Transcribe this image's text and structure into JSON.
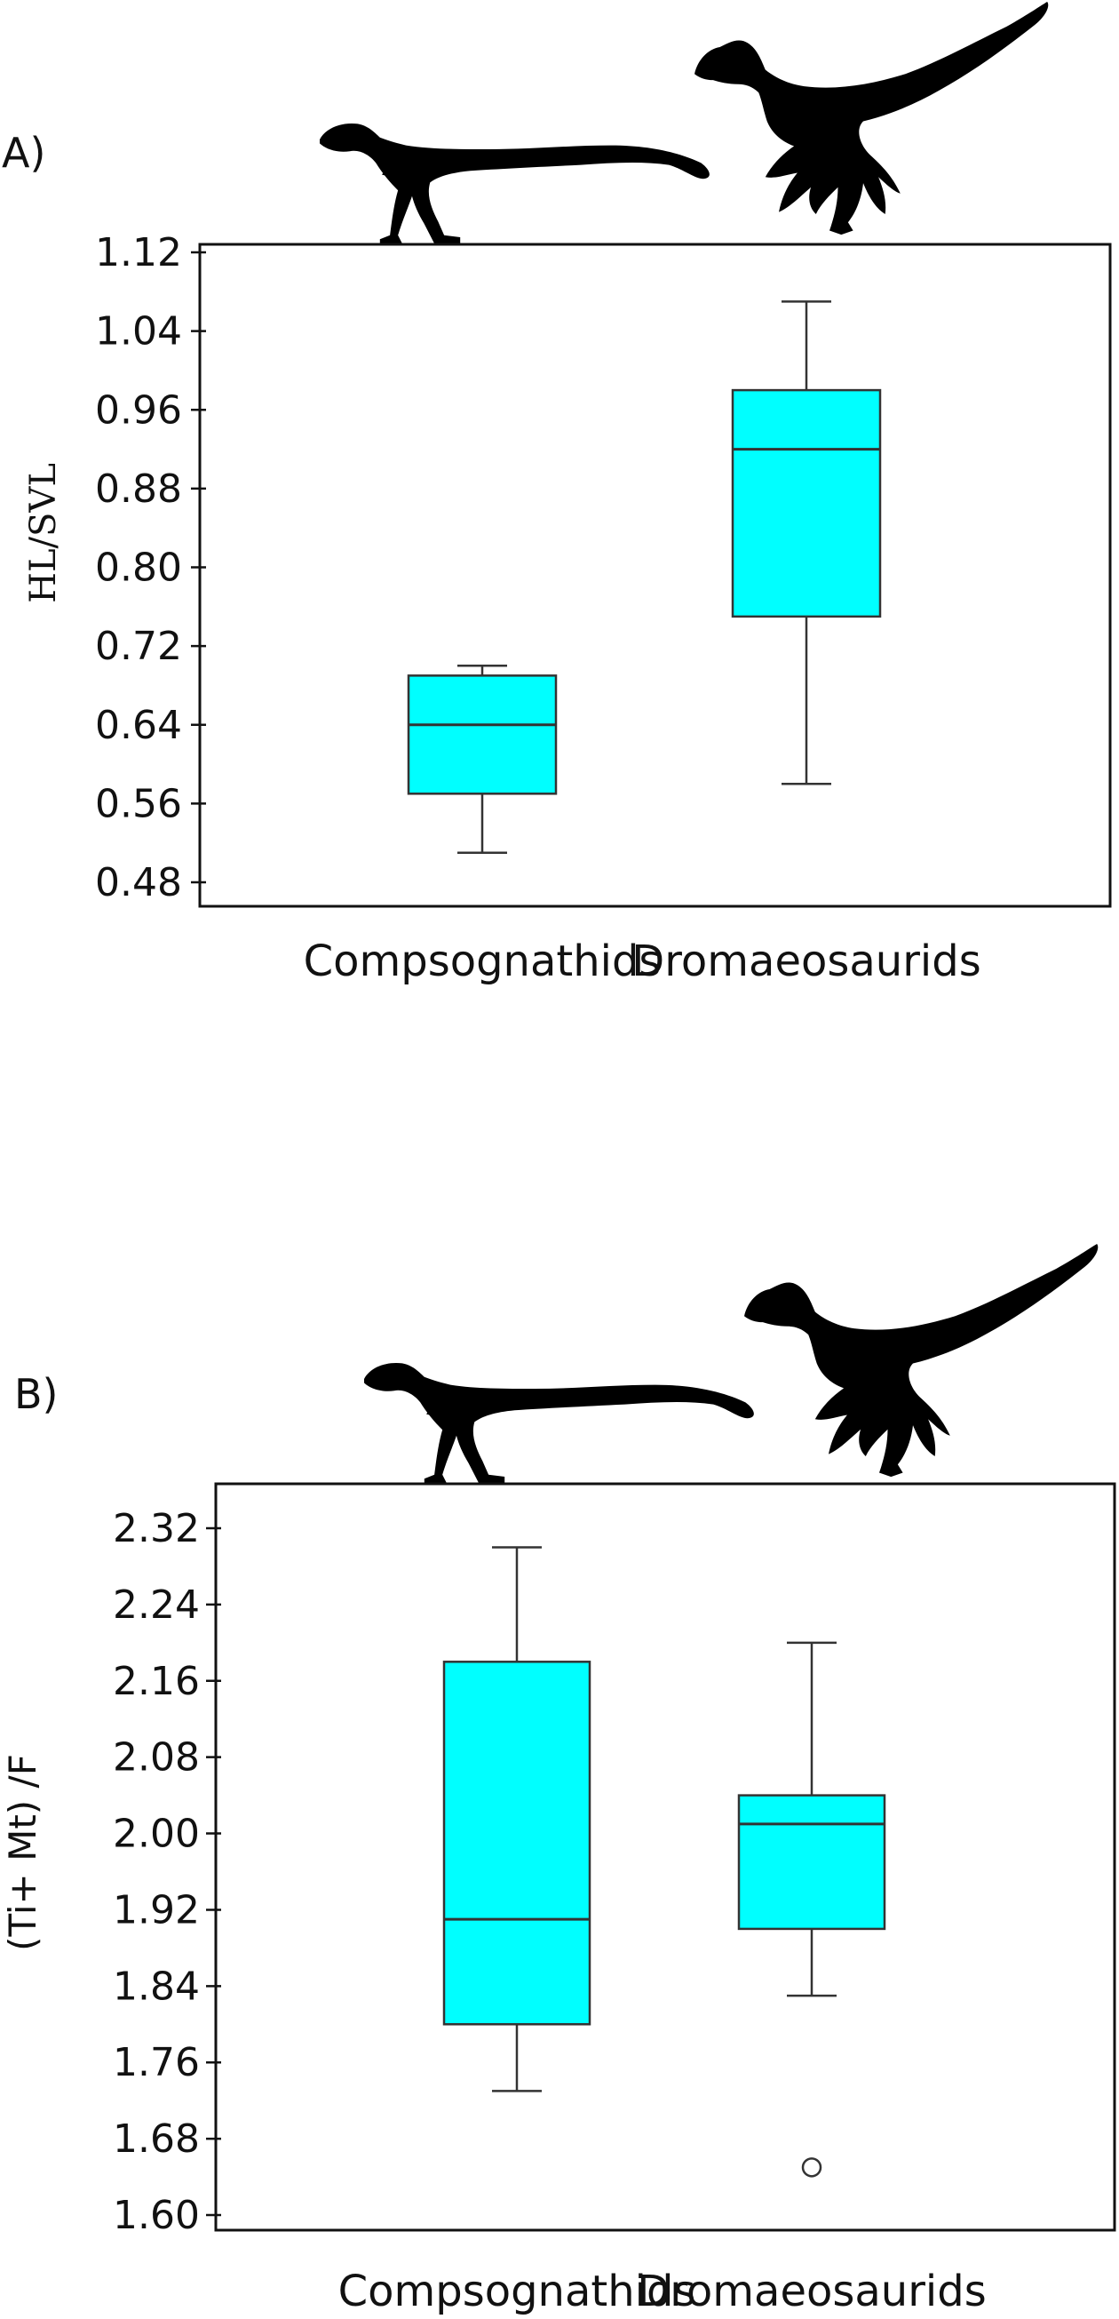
{
  "chart_data": [
    {
      "type": "box",
      "panel_label": "A)",
      "title": "",
      "xlabel": "",
      "ylabel": "HL/SVL",
      "ylim": [
        0.45,
        1.13
      ],
      "yticks": [
        "0.48",
        "0.56",
        "0.64",
        "0.72",
        "0.80",
        "0.88",
        "0.96",
        "1.04",
        "1.12"
      ],
      "categories": [
        "Compsognathids",
        "Dromaeosaurids"
      ],
      "box_color": "#00FFFF",
      "boxes": [
        {
          "category": "Compsognathids",
          "min": 0.51,
          "q1": 0.57,
          "median": 0.64,
          "q3": 0.69,
          "max": 0.7,
          "outliers": []
        },
        {
          "category": "Dromaeosaurids",
          "min": 0.58,
          "q1": 0.75,
          "median": 0.92,
          "q3": 0.98,
          "max": 1.07,
          "outliers": []
        }
      ]
    },
    {
      "type": "box",
      "panel_label": "B)",
      "title": "",
      "xlabel": "",
      "ylabel": "(Ti+ Mt) /F",
      "ylim": [
        1.59,
        2.35
      ],
      "yticks": [
        "1.60",
        "1.68",
        "1.76",
        "1.84",
        "1.92",
        "2.00",
        "2.08",
        "2.16",
        "2.24",
        "2.32"
      ],
      "categories": [
        "Compsognathids",
        "Dromaeosaurids"
      ],
      "box_color": "#00FFFF",
      "boxes": [
        {
          "category": "Compsognathids",
          "min": 1.73,
          "q1": 1.8,
          "median": 1.91,
          "q3": 2.18,
          "max": 2.3,
          "outliers": []
        },
        {
          "category": "Dromaeosaurids",
          "min": 1.83,
          "q1": 1.9,
          "median": 2.01,
          "q3": 2.04,
          "max": 2.2,
          "outliers": [
            1.65
          ]
        }
      ]
    }
  ],
  "silhouettes": [
    "compsognathid-silhouette",
    "dromaeosaurid-silhouette"
  ]
}
